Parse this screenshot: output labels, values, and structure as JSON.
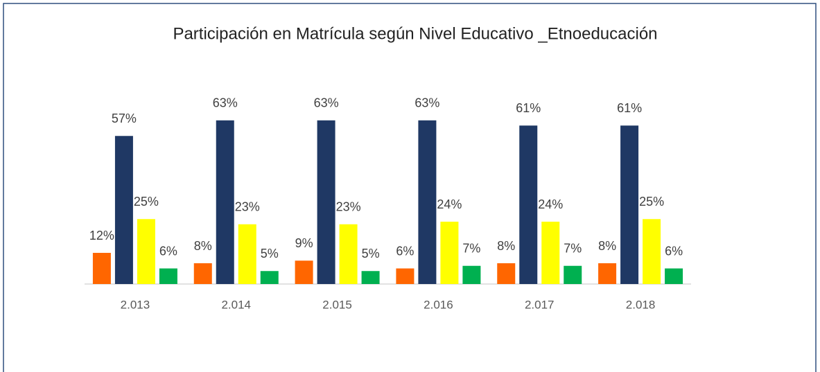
{
  "chart_data": {
    "type": "bar",
    "title": "Participación en Matrícula según  Nivel Educativo _Etnoeducación",
    "categories": [
      "2.013",
      "2.014",
      "2.015",
      "2.016",
      "2.017",
      "2.018"
    ],
    "series": [
      {
        "color": "#ff6600",
        "values": [
          12,
          8,
          9,
          6,
          8,
          8
        ],
        "value_labels": [
          "12%",
          "8%",
          "9%",
          "6%",
          "8%",
          "8%"
        ]
      },
      {
        "color": "#1f3864",
        "values": [
          57,
          63,
          63,
          63,
          61,
          61
        ],
        "value_labels": [
          "57%",
          "63%",
          "63%",
          "63%",
          "61%",
          "61%"
        ]
      },
      {
        "color": "#ffff00",
        "values": [
          25,
          23,
          23,
          24,
          24,
          25
        ],
        "value_labels": [
          "25%",
          "23%",
          "23%",
          "24%",
          "24%",
          "25%"
        ]
      },
      {
        "color": "#00b050",
        "values": [
          6,
          5,
          5,
          7,
          7,
          6
        ],
        "value_labels": [
          "6%",
          "5%",
          "5%",
          "7%",
          "7%",
          "6%"
        ]
      }
    ]
  }
}
